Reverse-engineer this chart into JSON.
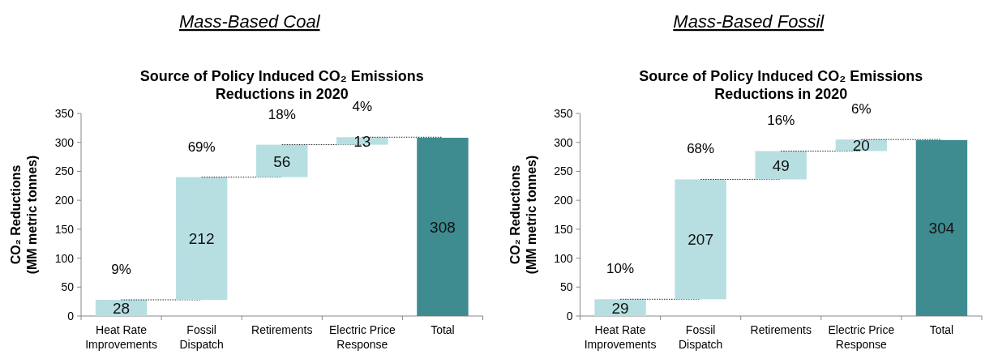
{
  "chart_data": [
    {
      "type": "bar",
      "title": "Mass-Based Coal",
      "subtitle": "Source of Policy Induced CO₂ Emissions Reductions in 2020",
      "ylabel": "CO₂ Reductions (MM metric tonnes)",
      "categories": [
        "Heat Rate Improvements",
        "Fossil Dispatch",
        "Retirements",
        "Electric Price Response",
        "Total"
      ],
      "values": [
        28,
        212,
        56,
        13,
        308
      ],
      "base": [
        0,
        28,
        240,
        296,
        0
      ],
      "colors": [
        "#b7dfe2",
        "#b7dfe2",
        "#b7dfe2",
        "#b7dfe2",
        "#3e8b90"
      ],
      "ylim": [
        0,
        350
      ],
      "yticks": [
        0,
        50,
        100,
        150,
        200,
        250,
        300,
        350
      ],
      "data_labels": true,
      "annotations": [
        "9%",
        "69%",
        "18%",
        "4%"
      ]
    },
    {
      "type": "bar",
      "title": "Mass-Based Fossil",
      "subtitle": "Source of Policy Induced CO₂ Emissions Reductions in 2020",
      "ylabel": "CO₂ Reductions (MM metric tonnes)",
      "categories": [
        "Heat Rate Improvements",
        "Fossil Dispatch",
        "Retirements",
        "Electric Price Response",
        "Total"
      ],
      "values": [
        29,
        207,
        49,
        20,
        304
      ],
      "base": [
        0,
        29,
        236,
        285,
        0
      ],
      "colors": [
        "#b7dfe2",
        "#b7dfe2",
        "#b7dfe2",
        "#b7dfe2",
        "#3e8b90"
      ],
      "ylim": [
        0,
        350
      ],
      "yticks": [
        0,
        50,
        100,
        150,
        200,
        250,
        300,
        350
      ],
      "data_labels": true,
      "annotations": [
        "10%",
        "68%",
        "16%",
        "6%"
      ]
    }
  ]
}
